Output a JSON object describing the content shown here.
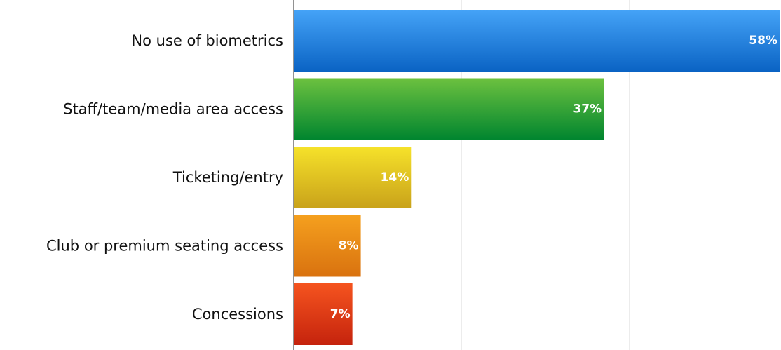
{
  "chart_data": {
    "type": "bar",
    "orientation": "horizontal",
    "categories": [
      "No use of biometrics",
      "Staff/team/media area access",
      "Ticketing/entry",
      "Club or premium seating access",
      "Concessions"
    ],
    "values": [
      58,
      37,
      14,
      8,
      7
    ],
    "value_labels": [
      "58%",
      "37%",
      "14%",
      "8%",
      "7%"
    ],
    "xlim": [
      0,
      58
    ],
    "grid": true,
    "legend": "none",
    "bar_colors": [
      {
        "top": "#45a3f7",
        "bottom": "#0a63c4"
      },
      {
        "top": "#6cc13f",
        "bottom": "#00852f"
      },
      {
        "top": "#f6e22a",
        "bottom": "#c9a21a"
      },
      {
        "top": "#f5a01e",
        "bottom": "#d9720f"
      },
      {
        "top": "#f5541f",
        "bottom": "#c5230d"
      }
    ]
  }
}
